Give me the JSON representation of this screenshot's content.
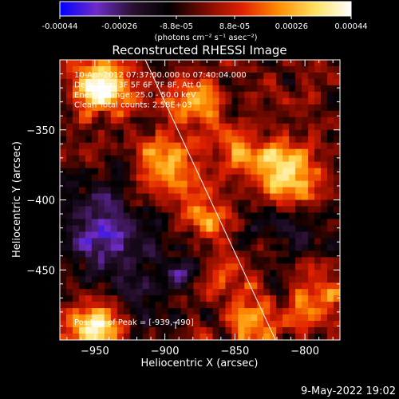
{
  "colorbar": {
    "ticks": [
      "-0.00044",
      "-0.00026",
      "-8.8e-05",
      "8.8e-05",
      "0.00026",
      "0.00044"
    ],
    "tick_values": [
      -0.00044,
      -0.00026,
      -8.8e-05,
      8.8e-05,
      0.00026,
      0.00044
    ],
    "range": [
      -0.00044,
      0.00044
    ],
    "units_label": "(photons cm⁻² s⁻¹ asec⁻²)",
    "colors": [
      "#0000ff",
      "#6e2cc8",
      "#2a1030",
      "#000000",
      "#7a0a00",
      "#e02000",
      "#ff8c00",
      "#ffe060",
      "#ffffff"
    ]
  },
  "chart_data": {
    "type": "heatmap",
    "title": "Reconstructed RHESSI Image",
    "xlabel": "Heliocentric X (arcsec)",
    "ylabel": "Heliocentric Y (arcsec)",
    "xlim": [
      -975,
      -775
    ],
    "ylim": [
      -500,
      -300
    ],
    "x_ticks": [
      -950,
      -900,
      -850,
      -800
    ],
    "x_tick_labels": [
      "−950",
      "−900",
      "−850",
      "−800"
    ],
    "y_ticks": [
      -350,
      -400,
      -450
    ],
    "y_tick_labels": [
      "−350",
      "−400",
      "−450"
    ],
    "annotations": [
      "10-Apr-2012 07:37:00.000 to 07:40:04.000",
      "Detectors: 3F 5F 6F 7F 8F, Att 0",
      "Energy Range: 25.0 - 50.0 keV",
      "Clean      Total counts: 2.58E+03"
    ],
    "peak_label": "Position of Peak = [-939,-490]",
    "peak_position": [
      -939,
      -490
    ],
    "limb_line": [
      [
        -914,
        -300
      ],
      [
        -821,
        -500
      ]
    ],
    "bright_sources": [
      {
        "x": -945,
        "y": -320,
        "amp": 1.0
      },
      {
        "x": -950,
        "y": -490,
        "amp": 1.0
      },
      {
        "x": -810,
        "y": -382,
        "amp": 1.0
      },
      {
        "x": -900,
        "y": -375,
        "amp": 0.7
      },
      {
        "x": -880,
        "y": -330,
        "amp": 0.6
      },
      {
        "x": -870,
        "y": -415,
        "amp": 0.55
      },
      {
        "x": -860,
        "y": -455,
        "amp": 0.5
      },
      {
        "x": -835,
        "y": -490,
        "amp": 0.6
      },
      {
        "x": -790,
        "y": -470,
        "amp": 0.55
      },
      {
        "x": -845,
        "y": -370,
        "amp": 0.45
      }
    ],
    "dim_regions": [
      {
        "x": -945,
        "y": -420,
        "amp": 0.8
      },
      {
        "x": -925,
        "y": -470,
        "amp": 0.5
      },
      {
        "x": -880,
        "y": -440,
        "amp": 0.45
      },
      {
        "x": -815,
        "y": -425,
        "amp": 0.4
      }
    ]
  },
  "footer": {
    "timestamp": "9-May-2022 19:02"
  }
}
